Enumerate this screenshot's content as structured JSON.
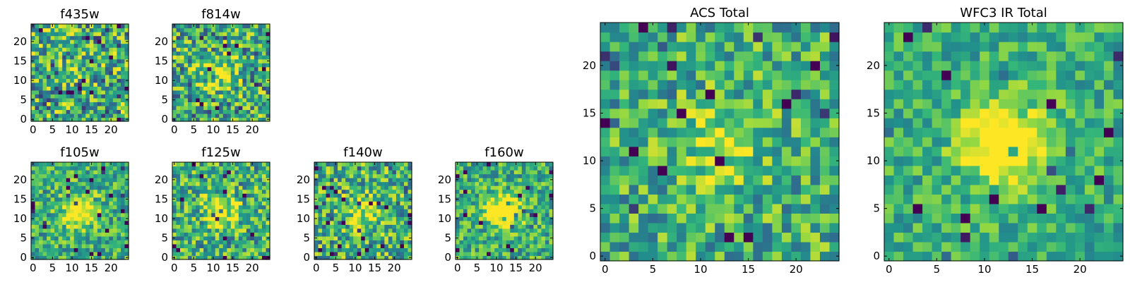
{
  "colormap": [
    "#440154",
    "#31688e",
    "#21918c",
    "#35b779",
    "#90d743",
    "#fde725"
  ],
  "chart_data": [
    {
      "type": "heatmap",
      "title": "f435w",
      "grid_size": 25,
      "xlim": [
        0,
        24
      ],
      "ylim": [
        0,
        24
      ],
      "xticks": [
        0,
        5,
        10,
        15,
        20
      ],
      "yticks": [
        0,
        5,
        10,
        15,
        20
      ],
      "seed": 11,
      "peak": 0.15,
      "noise": 1.0
    },
    {
      "type": "heatmap",
      "title": "f814w",
      "grid_size": 25,
      "xlim": [
        0,
        24
      ],
      "ylim": [
        0,
        24
      ],
      "xticks": [
        0,
        5,
        10,
        15,
        20
      ],
      "yticks": [
        0,
        5,
        10,
        15,
        20
      ],
      "seed": 23,
      "peak": 0.35,
      "noise": 0.95
    },
    {
      "type": "heatmap",
      "title": "f105w",
      "grid_size": 25,
      "xlim": [
        0,
        24
      ],
      "ylim": [
        0,
        24
      ],
      "xticks": [
        0,
        5,
        10,
        15,
        20
      ],
      "yticks": [
        0,
        5,
        10,
        15,
        20
      ],
      "seed": 37,
      "peak": 0.6,
      "noise": 0.7
    },
    {
      "type": "heatmap",
      "title": "f125w",
      "grid_size": 25,
      "xlim": [
        0,
        24
      ],
      "ylim": [
        0,
        24
      ],
      "xticks": [
        0,
        5,
        10,
        15,
        20
      ],
      "yticks": [
        0,
        5,
        10,
        15,
        20
      ],
      "seed": 41,
      "peak": 0.45,
      "noise": 0.85
    },
    {
      "type": "heatmap",
      "title": "f140w",
      "grid_size": 25,
      "xlim": [
        0,
        24
      ],
      "ylim": [
        0,
        24
      ],
      "xticks": [
        0,
        5,
        10,
        15,
        20
      ],
      "yticks": [
        0,
        5,
        10,
        15,
        20
      ],
      "seed": 53,
      "peak": 0.4,
      "noise": 0.9
    },
    {
      "type": "heatmap",
      "title": "f160w",
      "grid_size": 25,
      "xlim": [
        0,
        24
      ],
      "ylim": [
        0,
        24
      ],
      "xticks": [
        0,
        5,
        10,
        15,
        20
      ],
      "yticks": [
        0,
        5,
        10,
        15,
        20
      ],
      "seed": 67,
      "peak": 0.75,
      "noise": 0.7
    },
    {
      "type": "heatmap",
      "title": "ACS Total",
      "grid_size": 25,
      "xlim": [
        0,
        24
      ],
      "ylim": [
        0,
        24
      ],
      "xticks": [
        0,
        5,
        10,
        15,
        20
      ],
      "yticks": [
        0,
        5,
        10,
        15,
        20
      ],
      "seed": 79,
      "peak": 0.3,
      "noise": 0.75
    },
    {
      "type": "heatmap",
      "title": "WFC3 IR Total",
      "grid_size": 25,
      "xlim": [
        0,
        24
      ],
      "ylim": [
        0,
        24
      ],
      "xticks": [
        0,
        5,
        10,
        15,
        20
      ],
      "yticks": [
        0,
        5,
        10,
        15,
        20
      ],
      "seed": 97,
      "peak": 0.8,
      "noise": 0.55
    }
  ]
}
